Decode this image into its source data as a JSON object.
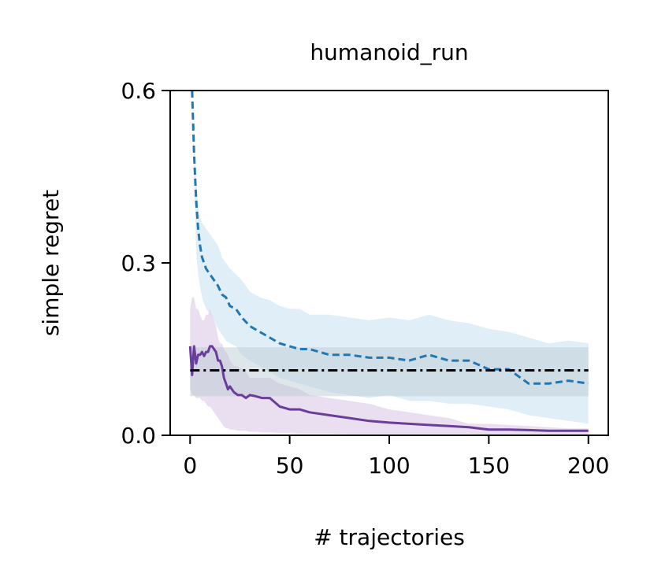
{
  "chart_data": {
    "type": "line",
    "title": "humanoid_run",
    "xlabel": "# trajectories",
    "ylabel": "simple regret",
    "xlim": [
      -10,
      210
    ],
    "ylim": [
      0,
      0.6
    ],
    "xticks": [
      0,
      50,
      100,
      150,
      200
    ],
    "xtick_labels": [
      "0",
      "50",
      "100",
      "150",
      "200"
    ],
    "yticks": [
      0,
      0.3,
      0.6
    ],
    "ytick_labels": [
      "0.0",
      "0.3",
      "0.6"
    ],
    "grid": false,
    "legend": false,
    "colors": {
      "blue": "#1f77b4",
      "blue_band": "#c6e0f0",
      "purple": "#6a3d9a",
      "purple_band": "#e3d7ec",
      "baseline": "#000000",
      "baseline_band": "#b8c8d0"
    },
    "series": [
      {
        "style": "dashed",
        "color": "#1f77b4",
        "x": [
          1,
          2,
          3,
          4,
          5,
          6,
          8,
          10,
          12,
          14,
          16,
          18,
          20,
          23,
          26,
          30,
          35,
          40,
          45,
          50,
          55,
          60,
          70,
          80,
          90,
          100,
          110,
          120,
          130,
          140,
          150,
          160,
          170,
          180,
          190,
          200
        ],
        "y": [
          0.6,
          0.49,
          0.41,
          0.36,
          0.33,
          0.31,
          0.29,
          0.28,
          0.27,
          0.26,
          0.245,
          0.24,
          0.225,
          0.22,
          0.205,
          0.19,
          0.18,
          0.17,
          0.16,
          0.155,
          0.15,
          0.15,
          0.14,
          0.14,
          0.135,
          0.135,
          0.13,
          0.14,
          0.13,
          0.13,
          0.115,
          0.115,
          0.09,
          0.09,
          0.095,
          0.09
        ],
        "band_upper": [
          0.6,
          0.5,
          0.45,
          0.4,
          0.38,
          0.37,
          0.36,
          0.35,
          0.34,
          0.33,
          0.31,
          0.3,
          0.29,
          0.28,
          0.27,
          0.25,
          0.24,
          0.235,
          0.225,
          0.22,
          0.22,
          0.21,
          0.21,
          0.205,
          0.2,
          0.205,
          0.2,
          0.21,
          0.2,
          0.195,
          0.185,
          0.18,
          0.17,
          0.16,
          0.165,
          0.16
        ],
        "band_lower": [
          0.6,
          0.45,
          0.32,
          0.28,
          0.26,
          0.24,
          0.22,
          0.21,
          0.2,
          0.185,
          0.175,
          0.165,
          0.16,
          0.155,
          0.14,
          0.13,
          0.12,
          0.11,
          0.1,
          0.095,
          0.09,
          0.085,
          0.075,
          0.07,
          0.065,
          0.07,
          0.06,
          0.06,
          0.055,
          0.055,
          0.05,
          0.045,
          0.035,
          0.03,
          0.025,
          0.02
        ]
      },
      {
        "style": "solid",
        "color": "#6a3d9a",
        "x": [
          0,
          1,
          2,
          3,
          4,
          5,
          6,
          7,
          8,
          9,
          10,
          11,
          12,
          13,
          14,
          15,
          16,
          17,
          18,
          19,
          20,
          22,
          24,
          26,
          28,
          30,
          33,
          36,
          40,
          45,
          50,
          55,
          60,
          70,
          80,
          90,
          100,
          110,
          120,
          130,
          140,
          150,
          160,
          170,
          180,
          190,
          200
        ],
        "y": [
          0.155,
          0.105,
          0.155,
          0.125,
          0.14,
          0.14,
          0.145,
          0.138,
          0.145,
          0.145,
          0.155,
          0.155,
          0.15,
          0.145,
          0.13,
          0.13,
          0.12,
          0.1,
          0.09,
          0.08,
          0.085,
          0.075,
          0.07,
          0.07,
          0.065,
          0.07,
          0.068,
          0.065,
          0.065,
          0.05,
          0.045,
          0.045,
          0.04,
          0.035,
          0.03,
          0.025,
          0.022,
          0.02,
          0.018,
          0.016,
          0.014,
          0.01,
          0.01,
          0.009,
          0.008,
          0.008,
          0.008
        ],
        "band_upper": [
          0.22,
          0.24,
          0.24,
          0.22,
          0.22,
          0.21,
          0.2,
          0.2,
          0.21,
          0.21,
          0.22,
          0.21,
          0.2,
          0.19,
          0.17,
          0.16,
          0.16,
          0.15,
          0.145,
          0.14,
          0.13,
          0.12,
          0.12,
          0.115,
          0.11,
          0.1,
          0.1,
          0.1,
          0.1,
          0.09,
          0.085,
          0.08,
          0.07,
          0.065,
          0.06,
          0.055,
          0.045,
          0.04,
          0.035,
          0.03,
          0.02,
          0.02,
          0.018,
          0.016,
          0.014,
          0.012,
          0.012
        ],
        "band_lower": [
          0.08,
          0.07,
          0.07,
          0.065,
          0.065,
          0.065,
          0.06,
          0.06,
          0.055,
          0.05,
          0.05,
          0.045,
          0.04,
          0.035,
          0.03,
          0.025,
          0.02,
          0.015,
          0.012,
          0.012,
          0.01,
          0.01,
          0.008,
          0.008,
          0.008,
          0.006,
          0.006,
          0.005,
          0.005,
          0.004,
          0.004,
          0.003,
          0.003,
          0.003,
          0.002,
          0.002,
          0.002,
          0.002,
          0.002,
          0.002,
          0.002,
          0.001,
          0.001,
          0.001,
          0.001,
          0.001,
          0.001
        ]
      },
      {
        "style": "dashdot",
        "color": "#000000",
        "x": [
          0,
          200
        ],
        "y": [
          0.113,
          0.113
        ],
        "band_upper": [
          0.153,
          0.153
        ],
        "band_lower": [
          0.068,
          0.068
        ]
      }
    ]
  }
}
